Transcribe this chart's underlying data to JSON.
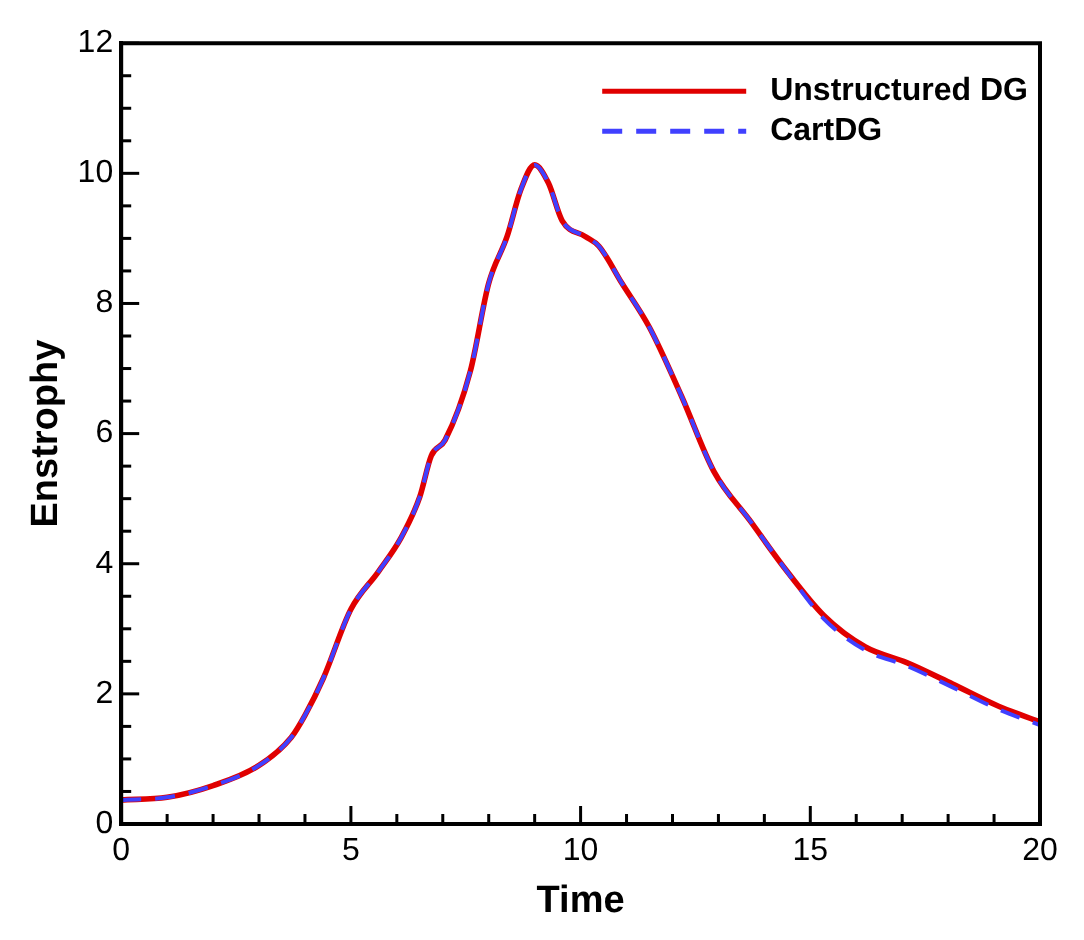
{
  "chart_data": {
    "type": "line",
    "xlabel": "Time",
    "ylabel": "Enstrophy",
    "legend": "top right",
    "marker": "none",
    "xlim": [
      0,
      20
    ],
    "ylim": [
      0,
      12
    ],
    "xticks": [
      0,
      {
        "value": 1,
        "label": null
      },
      {
        "value": 2,
        "label": null
      },
      {
        "value": 3,
        "label": null
      },
      {
        "value": 4,
        "label": null
      },
      5,
      {
        "value": 6,
        "label": null
      },
      {
        "value": 7,
        "label": null
      },
      {
        "value": 8,
        "label": null
      },
      {
        "value": 9,
        "label": null
      },
      10,
      {
        "value": 11,
        "label": null
      },
      {
        "value": 12,
        "label": null
      },
      {
        "value": 13,
        "label": null
      },
      {
        "value": 14,
        "label": null
      },
      15,
      {
        "value": 16,
        "label": null
      },
      {
        "value": 17,
        "label": null
      },
      {
        "value": 18,
        "label": null
      },
      {
        "value": 19,
        "label": null
      },
      20
    ],
    "yticks": [
      0,
      {
        "value": 0.5,
        "label": null
      },
      {
        "value": 1,
        "label": null
      },
      {
        "value": 1.5,
        "label": null
      },
      2,
      {
        "value": 2.5,
        "label": null
      },
      {
        "value": 3,
        "label": null
      },
      {
        "value": 3.5,
        "label": null
      },
      4,
      {
        "value": 4.5,
        "label": null
      },
      {
        "value": 5,
        "label": null
      },
      {
        "value": 5.5,
        "label": null
      },
      6,
      {
        "value": 6.5,
        "label": null
      },
      {
        "value": 7,
        "label": null
      },
      {
        "value": 7.5,
        "label": null
      },
      8,
      {
        "value": 8.5,
        "label": null
      },
      {
        "value": 9,
        "label": null
      },
      {
        "value": 9.5,
        "label": null
      },
      10,
      {
        "value": 10.5,
        "label": null
      },
      {
        "value": 11,
        "label": null
      },
      {
        "value": 11.5,
        "label": null
      },
      12
    ],
    "series": [
      {
        "name": "Unstructured DG",
        "color": "#e00000",
        "line_style": "solid",
        "x": [
          0,
          1,
          2,
          3,
          3.7,
          4,
          4.4,
          5,
          5.6,
          6.1,
          6.5,
          6.75,
          7.05,
          7.6,
          8,
          8.4,
          8.7,
          9,
          9.3,
          9.6,
          10.1,
          10.4,
          10.9,
          11.5,
          12.2,
          12.9,
          13.7,
          14.4,
          15.3,
          16.2,
          17.1,
          18.1,
          19.1,
          20
        ],
        "values": [
          0.37,
          0.41,
          0.59,
          0.9,
          1.33,
          1.67,
          2.24,
          3.3,
          3.88,
          4.41,
          5.03,
          5.66,
          5.9,
          6.96,
          8.31,
          9.03,
          9.75,
          10.13,
          9.85,
          9.27,
          9.03,
          8.88,
          8.31,
          7.63,
          6.57,
          5.42,
          4.65,
          3.97,
          3.2,
          2.72,
          2.48,
          2.15,
          1.81,
          1.57
        ]
      },
      {
        "name": "CartDG",
        "color": "#4040ff",
        "line_style": "dashed",
        "x": [
          0,
          1,
          2,
          3,
          3.7,
          4,
          4.4,
          5,
          5.6,
          6.1,
          6.5,
          6.75,
          7.05,
          7.6,
          8,
          8.4,
          8.7,
          9,
          9.3,
          9.6,
          10.1,
          10.4,
          10.9,
          11.5,
          12.2,
          12.9,
          13.7,
          14.4,
          15.3,
          16.2,
          17.1,
          18.1,
          19.1,
          20
        ],
        "values": [
          0.37,
          0.41,
          0.59,
          0.9,
          1.33,
          1.67,
          2.24,
          3.3,
          3.88,
          4.41,
          5.03,
          5.66,
          5.9,
          6.96,
          8.31,
          9.03,
          9.75,
          10.13,
          9.85,
          9.27,
          9.03,
          8.88,
          8.31,
          7.63,
          6.57,
          5.42,
          4.65,
          3.97,
          3.15,
          2.67,
          2.43,
          2.1,
          1.76,
          1.52
        ]
      }
    ]
  }
}
